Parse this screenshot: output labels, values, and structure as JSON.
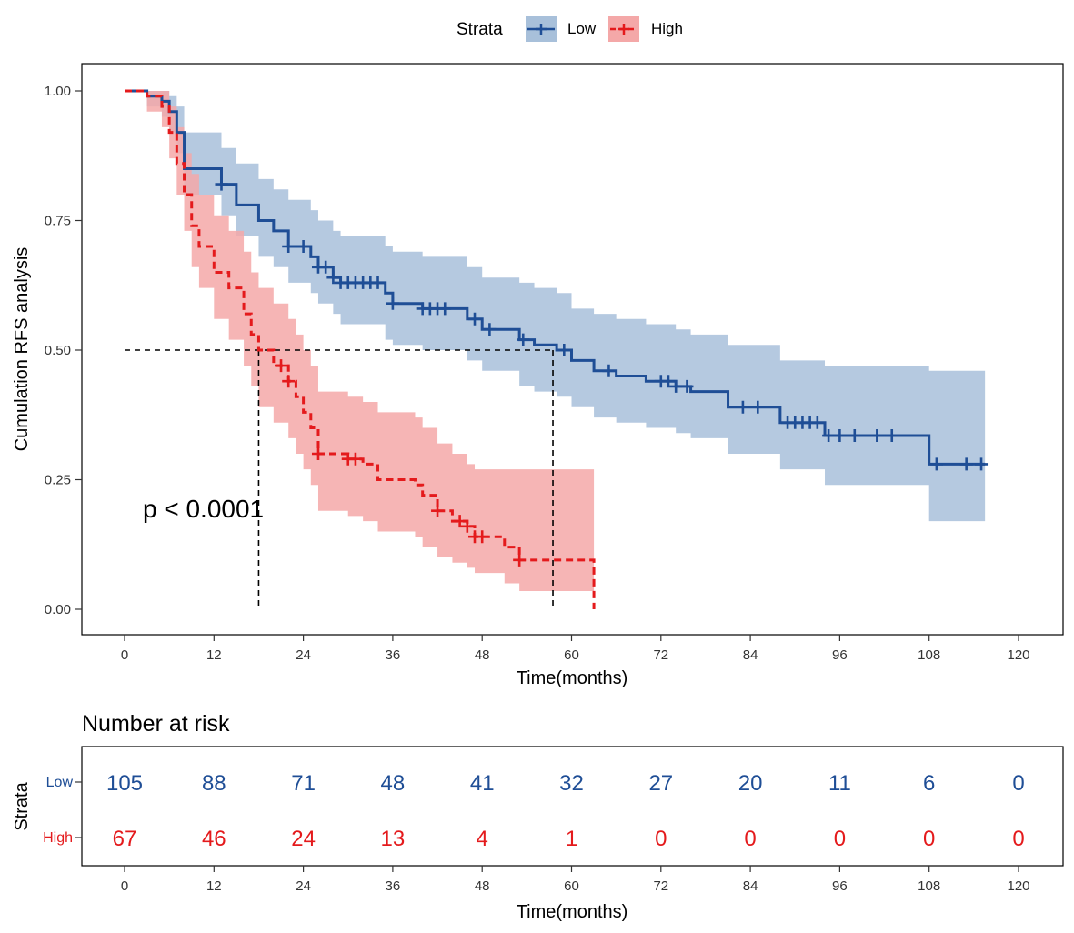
{
  "legend": {
    "title": "Strata",
    "items": [
      {
        "label": "Low",
        "color": "#1f4e96"
      },
      {
        "label": "High",
        "color": "#e41a1c"
      }
    ]
  },
  "chart_data": [
    {
      "type": "line",
      "chart": "kaplan-meier",
      "title": "",
      "xlabel": "Time(months)",
      "ylabel": "Cumulation RFS analysis",
      "xlim": [
        0,
        120
      ],
      "ylim": [
        0,
        1
      ],
      "x_ticks": [
        0,
        12,
        24,
        36,
        48,
        60,
        72,
        84,
        96,
        108,
        120
      ],
      "y_ticks": [
        "0.00",
        "0.25",
        "0.50",
        "0.75",
        "1.00"
      ],
      "annotation": "p < 0.0001",
      "median_line": {
        "y": 0.5,
        "x_values": [
          18,
          57.5
        ]
      },
      "series": [
        {
          "name": "Low",
          "color": "#1f4e96",
          "ci_fill": "#a8c0da",
          "line_style": "solid",
          "x": [
            0,
            3,
            5,
            6,
            7,
            8,
            13,
            15,
            18,
            20,
            22,
            25,
            26,
            28,
            29,
            35,
            36,
            40,
            46,
            48,
            53,
            55,
            58,
            60,
            63,
            66,
            70,
            74,
            76,
            81,
            88,
            94,
            108,
            115.5
          ],
          "y": [
            1.0,
            0.99,
            0.98,
            0.96,
            0.92,
            0.85,
            0.82,
            0.78,
            0.75,
            0.73,
            0.7,
            0.68,
            0.66,
            0.64,
            0.63,
            0.61,
            0.59,
            0.58,
            0.56,
            0.54,
            0.52,
            0.51,
            0.5,
            0.48,
            0.46,
            0.45,
            0.44,
            0.43,
            0.42,
            0.39,
            0.36,
            0.335,
            0.28,
            0.28
          ],
          "ci_lower": [
            1.0,
            0.97,
            0.95,
            0.92,
            0.88,
            0.8,
            0.76,
            0.72,
            0.68,
            0.66,
            0.63,
            0.61,
            0.59,
            0.57,
            0.55,
            0.52,
            0.51,
            0.5,
            0.48,
            0.46,
            0.43,
            0.42,
            0.41,
            0.39,
            0.37,
            0.36,
            0.35,
            0.34,
            0.33,
            0.3,
            0.27,
            0.24,
            0.17,
            0.17
          ],
          "ci_upper": [
            1.0,
            1.0,
            1.0,
            0.99,
            0.97,
            0.92,
            0.89,
            0.86,
            0.83,
            0.81,
            0.79,
            0.77,
            0.75,
            0.73,
            0.72,
            0.7,
            0.69,
            0.68,
            0.66,
            0.64,
            0.63,
            0.62,
            0.61,
            0.58,
            0.57,
            0.56,
            0.55,
            0.54,
            0.53,
            0.51,
            0.48,
            0.47,
            0.46,
            0.46
          ],
          "censor_times": [
            13,
            22,
            24,
            26,
            27,
            28,
            29,
            30,
            31,
            32,
            33,
            34,
            36,
            40,
            41,
            42,
            43,
            47,
            49,
            53.5,
            59,
            65,
            72,
            73,
            74,
            75.5,
            83,
            85,
            89,
            90,
            91,
            92,
            93,
            94.5,
            96,
            98,
            101,
            103,
            109,
            113,
            115
          ]
        },
        {
          "name": "High",
          "color": "#e41a1c",
          "ci_fill": "#f4a8a8",
          "line_style": "dashed",
          "x": [
            0,
            3,
            5,
            6,
            7,
            8,
            9,
            10,
            12,
            14,
            16,
            17,
            18,
            20,
            22,
            23,
            24,
            25,
            26,
            30,
            32,
            34,
            39,
            40,
            42,
            44,
            46,
            47,
            48,
            51,
            53,
            57,
            63
          ],
          "y": [
            1.0,
            0.99,
            0.97,
            0.92,
            0.86,
            0.8,
            0.74,
            0.7,
            0.65,
            0.62,
            0.57,
            0.53,
            0.5,
            0.47,
            0.44,
            0.41,
            0.38,
            0.35,
            0.3,
            0.29,
            0.28,
            0.25,
            0.24,
            0.22,
            0.19,
            0.17,
            0.16,
            0.14,
            0.14,
            0.12,
            0.095,
            0.095,
            0.0
          ],
          "ci_lower": [
            1.0,
            0.96,
            0.93,
            0.87,
            0.8,
            0.73,
            0.66,
            0.62,
            0.56,
            0.52,
            0.47,
            0.43,
            0.39,
            0.36,
            0.33,
            0.3,
            0.27,
            0.24,
            0.19,
            0.18,
            0.17,
            0.15,
            0.14,
            0.12,
            0.1,
            0.09,
            0.08,
            0.07,
            0.07,
            0.05,
            0.035,
            0.035,
            0.035
          ],
          "ci_upper": [
            1.0,
            1.0,
            1.0,
            0.97,
            0.93,
            0.88,
            0.84,
            0.8,
            0.76,
            0.73,
            0.69,
            0.65,
            0.62,
            0.59,
            0.56,
            0.53,
            0.5,
            0.47,
            0.42,
            0.41,
            0.4,
            0.38,
            0.37,
            0.35,
            0.32,
            0.3,
            0.28,
            0.27,
            0.27,
            0.27,
            0.27,
            0.27,
            0.27
          ],
          "censor_times": [
            21,
            22,
            26,
            30,
            31,
            42,
            45,
            46,
            47,
            48,
            53
          ]
        }
      ]
    },
    {
      "type": "table",
      "title": "Number at risk",
      "ylabel": "Strata",
      "xlabel": "Time(months)",
      "xlim": [
        0,
        120
      ],
      "x_ticks": [
        0,
        12,
        24,
        36,
        48,
        60,
        72,
        84,
        96,
        108,
        120
      ],
      "rows": [
        {
          "name": "Low",
          "color": "#1f4e96",
          "values": [
            105,
            88,
            71,
            48,
            41,
            32,
            27,
            20,
            11,
            6,
            0
          ]
        },
        {
          "name": "High",
          "color": "#e41a1c",
          "values": [
            67,
            46,
            24,
            13,
            4,
            1,
            0,
            0,
            0,
            0,
            0
          ]
        }
      ]
    }
  ]
}
